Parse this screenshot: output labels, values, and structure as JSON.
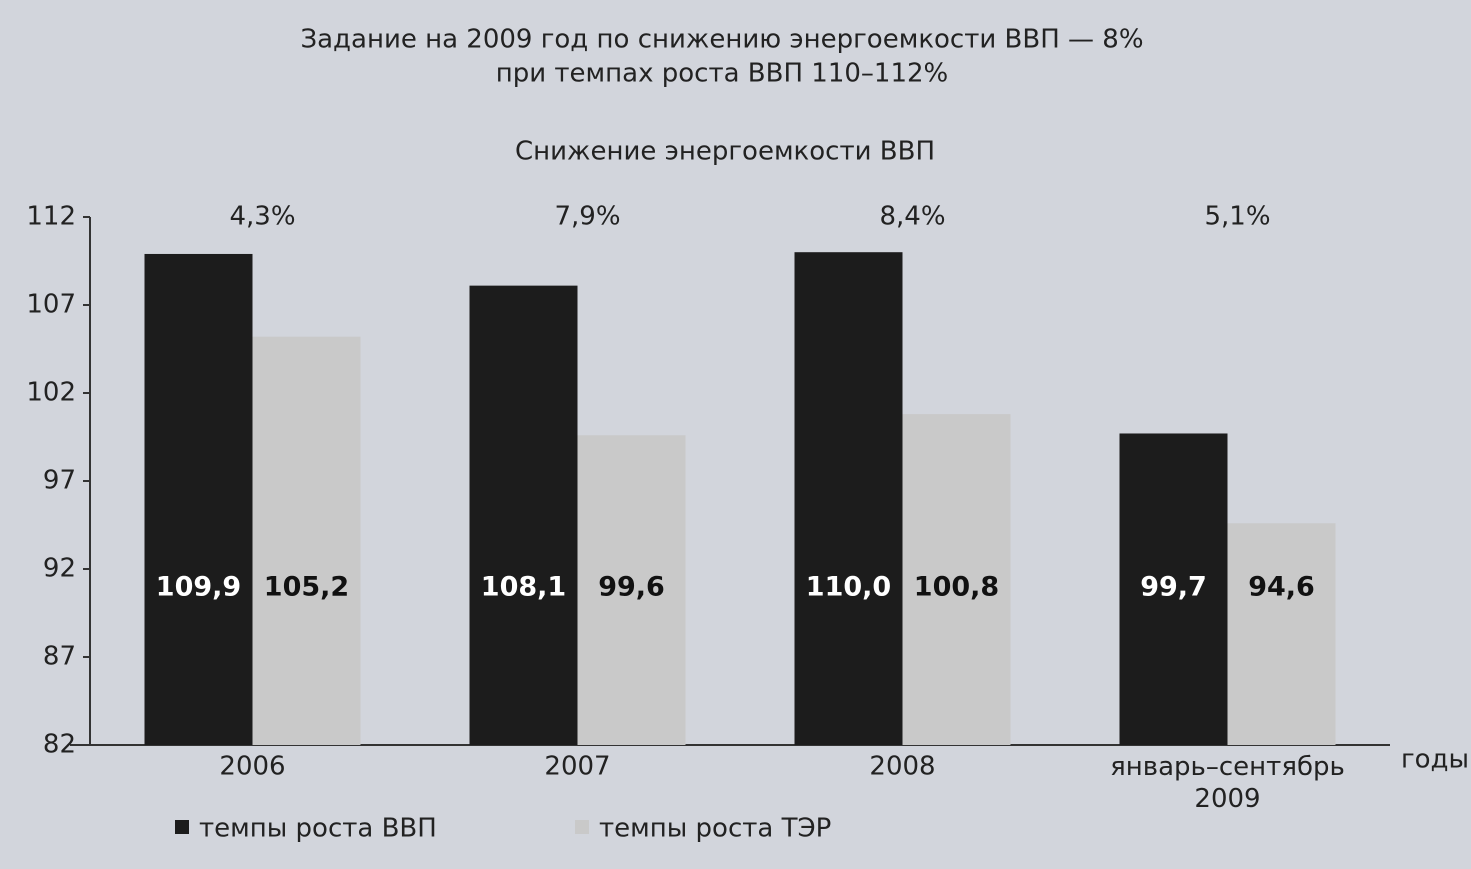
{
  "chart_data": {
    "type": "bar",
    "title": [
      "Задание на 2009 год по снижению энергоемкости ВВП — 8%",
      "при темпах роста ВВП 110–112%"
    ],
    "subtitle": "Снижение энергоемкости ВВП",
    "x_label": "годы",
    "categories": [
      "2006",
      "2007",
      "2008",
      "январь–сентябрь 2009"
    ],
    "category_annotations": [
      "4,3%",
      "7,9%",
      "8,4%",
      "5,1%"
    ],
    "series": [
      {
        "name": "темпы роста ВВП",
        "color": "#1c1c1c",
        "values": [
          109.9,
          108.1,
          110.0,
          99.7
        ],
        "value_labels": [
          "109,9",
          "108,1",
          "110,0",
          "99,7"
        ]
      },
      {
        "name": "темпы роста ТЭР",
        "color": "#c9c9c9",
        "values": [
          105.2,
          99.6,
          100.8,
          94.6
        ],
        "value_labels": [
          "105,2",
          "99,6",
          "100,8",
          "94,6"
        ]
      }
    ],
    "ylim": [
      82,
      112
    ],
    "yticks": [
      82,
      87,
      92,
      97,
      102,
      107,
      112
    ],
    "grid": false
  }
}
